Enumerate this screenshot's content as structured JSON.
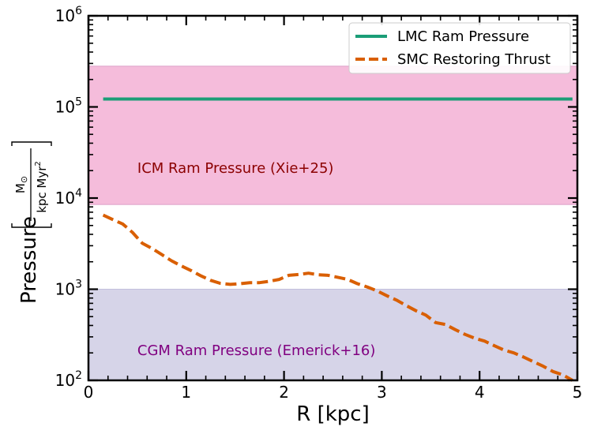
{
  "chart_data": {
    "type": "line",
    "xlabel": "R [kpc]",
    "ylabel": "Pressure",
    "ylabel_unit_numerator": "M",
    "ylabel_unit_sun": "⊙",
    "ylabel_unit_denominator": "kpc Myr",
    "ylabel_unit_exponent": "2",
    "xlim": [
      0,
      5
    ],
    "ylim": [
      100,
      1000000
    ],
    "yscale": "log",
    "x_ticks": [
      {
        "value": 0,
        "label": "0"
      },
      {
        "value": 1,
        "label": "1"
      },
      {
        "value": 2,
        "label": "2"
      },
      {
        "value": 3,
        "label": "3"
      },
      {
        "value": 4,
        "label": "4"
      },
      {
        "value": 5,
        "label": "5"
      }
    ],
    "y_ticks": [
      {
        "value": 100,
        "base": "10",
        "exp": "2"
      },
      {
        "value": 1000,
        "base": "10",
        "exp": "3"
      },
      {
        "value": 10000,
        "base": "10",
        "exp": "4"
      },
      {
        "value": 100000,
        "base": "10",
        "exp": "5"
      },
      {
        "value": 1000000,
        "base": "10",
        "exp": "6"
      }
    ],
    "bands": [
      {
        "name": "ICM Ram Pressure (Xie+25)",
        "ymin": 8500,
        "ymax": 280000,
        "fill": "#f5bcdb",
        "edge": "#dda0c8",
        "label_color": "#8b0000",
        "label_x": 0.5,
        "label_y": 21000
      },
      {
        "name": "CGM Ram Pressure (Emerick+16)",
        "ymin": 100,
        "ymax": 1000,
        "fill": "#d6d4e8",
        "edge": "#c2bfdd",
        "label_color": "#800080",
        "label_x": 0.5,
        "label_y": 210
      }
    ],
    "series": [
      {
        "name": "LMC Ram Pressure",
        "color": "#1b9e77",
        "dash": "solid",
        "x": [
          0.15,
          4.95
        ],
        "y": [
          122000,
          122000
        ]
      },
      {
        "name": "SMC Restoring Thrust",
        "color": "#d95f02",
        "dash": "dashed",
        "x": [
          0.15,
          0.25,
          0.35,
          0.45,
          0.55,
          0.65,
          0.75,
          0.85,
          0.95,
          1.05,
          1.15,
          1.25,
          1.35,
          1.45,
          1.55,
          1.65,
          1.75,
          1.85,
          1.95,
          2.05,
          2.15,
          2.25,
          2.35,
          2.45,
          2.55,
          2.65,
          2.75,
          2.85,
          2.95,
          3.05,
          3.15,
          3.25,
          3.35,
          3.45,
          3.55,
          3.65,
          3.75,
          3.85,
          3.95,
          4.05,
          4.15,
          4.25,
          4.35,
          4.45,
          4.55,
          4.65,
          4.75,
          4.85,
          4.95
        ],
        "y": [
          6500,
          5800,
          5200,
          4200,
          3200,
          2800,
          2400,
          2050,
          1800,
          1600,
          1400,
          1250,
          1160,
          1130,
          1150,
          1180,
          1180,
          1220,
          1280,
          1420,
          1450,
          1500,
          1440,
          1420,
          1350,
          1280,
          1150,
          1060,
          960,
          850,
          760,
          660,
          580,
          520,
          430,
          410,
          360,
          320,
          290,
          270,
          240,
          215,
          200,
          180,
          160,
          143,
          125,
          115,
          100
        ]
      }
    ],
    "legend": {
      "position": "top-right",
      "entries": [
        "LMC Ram Pressure",
        "SMC Restoring Thrust"
      ]
    }
  }
}
